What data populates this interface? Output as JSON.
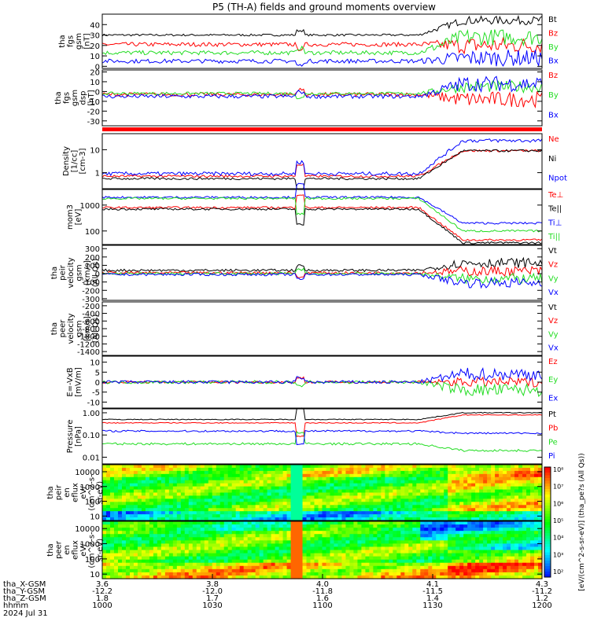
{
  "title": "P5 (TH-A) fields and ground moments overview",
  "colors": {
    "black": "#000000",
    "red": "#ff0000",
    "green": "#22dd22",
    "blue": "#0000ff",
    "frame": "#000000"
  },
  "chart_data": [
    {
      "type": "line",
      "ylabel": [
        "tha",
        "fgs",
        "gsm",
        "[nT]"
      ],
      "yticks": [
        "40",
        "30",
        "20",
        "10",
        "0"
      ],
      "ylim": [
        -2,
        50
      ],
      "legend": [
        "Bt",
        "Bz",
        "By",
        "Bx"
      ],
      "series": [
        {
          "name": "Bt",
          "color": "black",
          "base": 30,
          "late": 44,
          "noise": 1
        },
        {
          "name": "Bz",
          "color": "red",
          "base": 21,
          "late": 20,
          "noise": 2
        },
        {
          "name": "By",
          "color": "green",
          "base": 13,
          "late": 28,
          "noise": 2
        },
        {
          "name": "Bx",
          "color": "blue",
          "base": 5,
          "late": 8,
          "noise": 2
        }
      ]
    },
    {
      "type": "line",
      "ylabel": [
        "tha",
        "fgs",
        "gsm",
        "dsp",
        "[nT]"
      ],
      "yticks": [
        "20",
        "10",
        "0",
        "-10",
        "-20",
        "-30"
      ],
      "ylim": [
        -35,
        22
      ],
      "legend": [
        "Bz",
        "By",
        "Bx"
      ],
      "series": [
        {
          "name": "Bz",
          "color": "red",
          "base": -3,
          "late": -8,
          "noise": 2
        },
        {
          "name": "By",
          "color": "green",
          "base": -2,
          "late": 5,
          "noise": 1.5
        },
        {
          "name": "Bx",
          "color": "blue",
          "base": -5,
          "late": 8,
          "noise": 2
        }
      ]
    },
    {
      "type": "line",
      "ylabel": [
        "Density",
        "[1/cc]",
        "[cm-3]"
      ],
      "yticks": [
        "10",
        "1"
      ],
      "ylim": [
        0.2,
        50
      ],
      "log": true,
      "legend": [
        "Ne",
        "Ni",
        "Npot"
      ],
      "series": [
        {
          "name": "Ne",
          "color": "red",
          "base": 0.7,
          "late": 9,
          "noise": 0.05
        },
        {
          "name": "Ni",
          "color": "black",
          "base": 0.55,
          "late": 9,
          "noise": 0.05
        },
        {
          "name": "Npot",
          "color": "blue",
          "base": 0.9,
          "late": 25,
          "noise": 0.08
        }
      ]
    },
    {
      "type": "line",
      "ylabel": [
        "mom3",
        "[eV]"
      ],
      "yticks": [
        "1000",
        "100"
      ],
      "ylim": [
        30,
        4000
      ],
      "log": true,
      "legend": [
        "Te⊥",
        "Te||",
        "Ti⊥",
        "Ti||"
      ],
      "series": [
        {
          "name": "Te⊥",
          "color": "red",
          "base": 800,
          "late": 45,
          "noise": 0.04
        },
        {
          "name": "Te||",
          "color": "black",
          "base": 700,
          "late": 35,
          "noise": 0.04
        },
        {
          "name": "Ti⊥",
          "color": "blue",
          "base": 2000,
          "late": 200,
          "noise": 0.04
        },
        {
          "name": "Ti||",
          "color": "green",
          "base": 1800,
          "late": 100,
          "noise": 0.04
        }
      ]
    },
    {
      "type": "line",
      "ylabel": [
        "tha",
        "peir",
        "velocity",
        "gsm",
        "[km/s]",
        "(All Qs)"
      ],
      "yticks": [
        "300",
        "200",
        "100",
        "0",
        "-100",
        "-200",
        "-300"
      ],
      "ylim": [
        -320,
        340
      ],
      "legend": [
        "Vt",
        "Vz",
        "Vy",
        "Vx"
      ],
      "series": [
        {
          "name": "Vt",
          "color": "black",
          "base": 40,
          "late": 130,
          "noise": 15
        },
        {
          "name": "Vz",
          "color": "red",
          "base": 10,
          "late": 30,
          "noise": 15
        },
        {
          "name": "Vy",
          "color": "green",
          "base": 0,
          "late": -60,
          "noise": 15
        },
        {
          "name": "Vx",
          "color": "blue",
          "base": -10,
          "late": -110,
          "noise": 15
        }
      ]
    },
    {
      "type": "line",
      "ylabel": [
        "tha",
        "peer",
        "velocity",
        "gsm",
        "[km/s]",
        "(All Qs)"
      ],
      "yticks": [
        "-200",
        "-400",
        "-600",
        "-800",
        "-1000",
        "-1200",
        "-1400"
      ],
      "ylim": [
        -1500,
        -100
      ],
      "legend": [
        "Vt",
        "Vz",
        "Vy",
        "Vx"
      ],
      "series": []
    },
    {
      "type": "line",
      "ylabel": [
        "E=-VxB",
        "[mV/m]"
      ],
      "yticks": [
        "10",
        "5",
        "0",
        "-5",
        "-10"
      ],
      "ylim": [
        -13,
        13
      ],
      "legend": [
        "Ez",
        "Ey",
        "Ex"
      ],
      "series": [
        {
          "name": "Ez",
          "color": "red",
          "base": 0,
          "late": 0,
          "noise": 0.6
        },
        {
          "name": "Ey",
          "color": "green",
          "base": 0,
          "late": -4,
          "noise": 0.8
        },
        {
          "name": "Ex",
          "color": "blue",
          "base": 0,
          "late": 4,
          "noise": 0.8
        }
      ]
    },
    {
      "type": "line",
      "ylabel": [
        "Pressure",
        "[nPa]"
      ],
      "yticks": [
        "1.00",
        "0.10",
        "0.01"
      ],
      "ylim": [
        0.005,
        1.5
      ],
      "log": true,
      "legend": [
        "Pt",
        "Pb",
        "Pe",
        "Pi"
      ],
      "series": [
        {
          "name": "Pt",
          "color": "black",
          "base": 0.5,
          "late": 1.0,
          "noise": 0.02
        },
        {
          "name": "Pb",
          "color": "red",
          "base": 0.35,
          "late": 0.8,
          "noise": 0.02
        },
        {
          "name": "Pe",
          "color": "green",
          "base": 0.04,
          "late": 0.02,
          "noise": 0.05
        },
        {
          "name": "Pi",
          "color": "blue",
          "base": 0.15,
          "late": 0.12,
          "noise": 0.04
        }
      ]
    },
    {
      "type": "heatmap",
      "ylabel": [
        "tha",
        "peir",
        "en",
        "eflux",
        "eV/",
        "(cm^2-s-",
        "sr-eV)"
      ],
      "yticks": [
        "10000",
        "1000",
        "100",
        "10"
      ],
      "ylim": [
        5,
        30000
      ],
      "log": true
    },
    {
      "type": "heatmap",
      "ylabel": [
        "tha",
        "peer",
        "en",
        "eflux",
        "eV/",
        "(cm^2-s-",
        "sr-eV)"
      ],
      "yticks": [
        "10000",
        "1000",
        "100",
        "10"
      ],
      "ylim": [
        5,
        30000
      ],
      "log": true
    }
  ],
  "colorbar": {
    "tick_labels": [
      "10⁸",
      "10⁷",
      "10⁶",
      "10⁵",
      "10⁴",
      "10³",
      "10²"
    ],
    "label": "[eV/(cm^2-s-sr-eV)] (tha_pe?s (All Qs))"
  },
  "x_axis": {
    "rows": [
      {
        "label": "tha_X-GSM",
        "values": [
          "3.6",
          "3.8",
          "4.0",
          "4.1",
          "4.3"
        ]
      },
      {
        "label": "tha_Y-GSM",
        "values": [
          "-12.2",
          "-12.0",
          "-11.8",
          "-11.5",
          "-11.2"
        ]
      },
      {
        "label": "tha_Z-GSM",
        "values": [
          "1.8",
          "1.7",
          "1.6",
          "1.4",
          "1.2"
        ]
      },
      {
        "label": "hhmm",
        "values": [
          "1000",
          "1030",
          "1100",
          "1130",
          "1200"
        ]
      }
    ],
    "date": "2024 Jul 31"
  }
}
